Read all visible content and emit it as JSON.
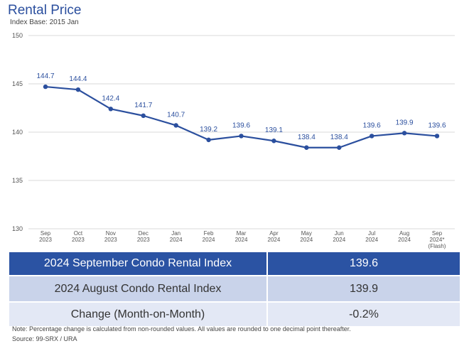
{
  "title": "Rental Price",
  "subtitle": "Index Base: 2015 Jan",
  "chart_data": {
    "type": "line",
    "title": "Rental Price",
    "subtitle": "Index Base: 2015 Jan",
    "categories": [
      [
        "Sep",
        "2023"
      ],
      [
        "Oct",
        "2023"
      ],
      [
        "Nov",
        "2023"
      ],
      [
        "Dec",
        "2023"
      ],
      [
        "Jan",
        "2024"
      ],
      [
        "Feb",
        "2024"
      ],
      [
        "Mar",
        "2024"
      ],
      [
        "Apr",
        "2024"
      ],
      [
        "May",
        "2024"
      ],
      [
        "Jun",
        "2024"
      ],
      [
        "Jul",
        "2024"
      ],
      [
        "Aug",
        "2024"
      ],
      [
        "Sep",
        "2024*",
        "(Flash)"
      ]
    ],
    "values": [
      144.7,
      144.4,
      142.4,
      141.7,
      140.7,
      139.2,
      139.6,
      139.1,
      138.4,
      138.4,
      139.6,
      139.9,
      139.6
    ],
    "data_labels": [
      "144.7",
      "144.4",
      "142.4",
      "141.7",
      "140.7",
      "139.2",
      "139.6",
      "139.1",
      "138.4",
      "138.4",
      "139.6",
      "139.9",
      "139.6"
    ],
    "yticks": [
      "130",
      "135",
      "140",
      "145",
      "150"
    ],
    "ylim": [
      130,
      150
    ],
    "grid": true,
    "line_color": "#2b4f9e",
    "grid_color": "#d9d9d9"
  },
  "table": {
    "rows": [
      {
        "label": "2024 September Condo Rental Index",
        "value": "139.6"
      },
      {
        "label": "2024 August Condo Rental Index",
        "value": "139.9"
      },
      {
        "label": "Change (Month-on-Month)",
        "value": "-0.2%"
      }
    ]
  },
  "note": "Note: Percentage change is calculated from non-rounded values.  All values are rounded to one decimal point thereafter.",
  "source": "Source: 99-SRX / URA"
}
